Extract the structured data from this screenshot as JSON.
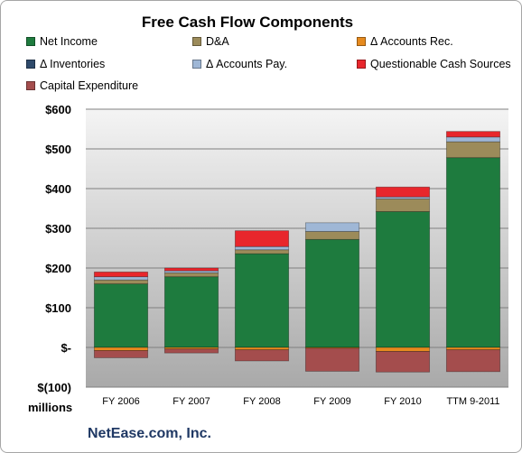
{
  "chart_data": {
    "type": "bar",
    "title": "Free Cash Flow Components",
    "xlabel": "",
    "ylabel": "",
    "units": "millions",
    "source": "NetEase.com, Inc.",
    "ylim": [
      -100,
      600
    ],
    "yticks": [
      -100,
      0,
      100,
      200,
      300,
      400,
      500,
      600
    ],
    "ytick_labels": [
      "$(100)",
      "$-",
      "$100",
      "$200",
      "$300",
      "$400",
      "$500",
      "$600"
    ],
    "categories": [
      "FY 2006",
      "FY 2007",
      "FY 2008",
      "FY 2009",
      "FY 2010",
      "TTM 9-2011"
    ],
    "grid": true,
    "legend_position": "top",
    "series": [
      {
        "name": "Net Income",
        "color": "#1e7b3e",
        "values": [
          160,
          178,
          236,
          272,
          342,
          478
        ]
      },
      {
        "name": "D&A",
        "color": "#9c8b5a",
        "values": [
          10,
          10,
          10,
          20,
          32,
          40
        ]
      },
      {
        "name": "Δ Accounts Rec.",
        "color": "#e68a1e",
        "values": [
          -8,
          -4,
          -6,
          -2,
          -10,
          -6
        ]
      },
      {
        "name": "Δ Inventories",
        "color": "#2e4a6b",
        "values": [
          0,
          0,
          0,
          0,
          0,
          0
        ]
      },
      {
        "name": "Δ Accounts Pay.",
        "color": "#9fb7d6",
        "values": [
          8,
          5,
          8,
          22,
          5,
          12
        ]
      },
      {
        "name": "Questionable Cash Sources",
        "color": "#e8262c",
        "values": [
          12,
          7,
          40,
          0,
          25,
          14
        ]
      },
      {
        "name": "Capital Expenditure",
        "color": "#a44d4d",
        "values": [
          -18,
          -10,
          -28,
          -58,
          -52,
          -55
        ]
      }
    ]
  }
}
